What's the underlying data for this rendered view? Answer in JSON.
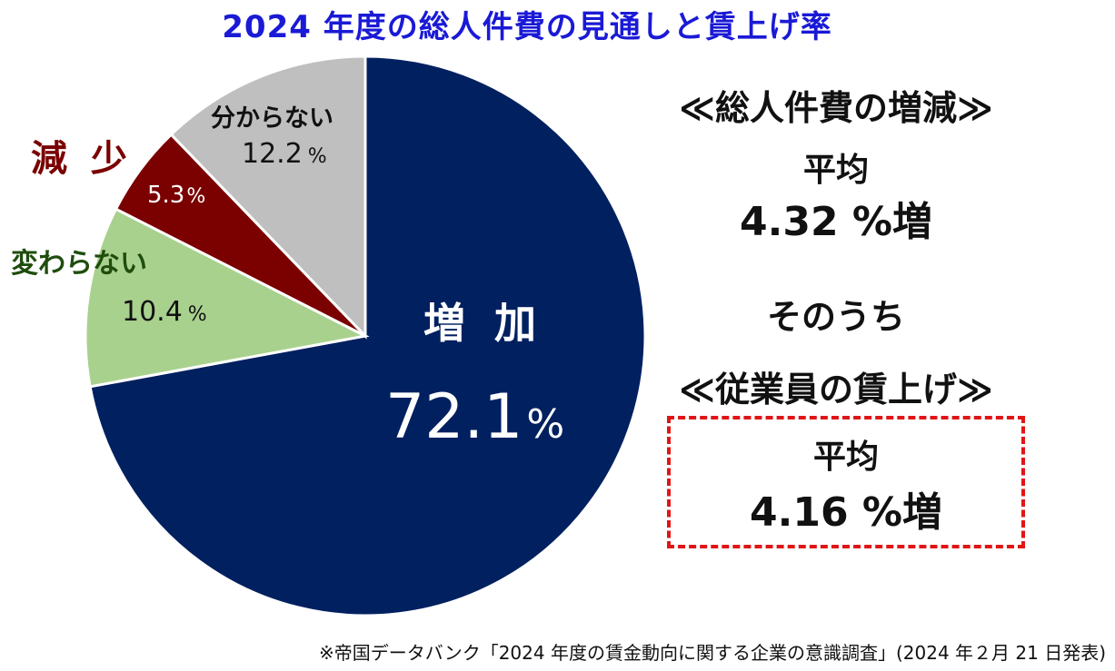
{
  "title": "2024 年度の総人件費の見通しと賃上げ率",
  "chart_data": {
    "type": "pie",
    "title": "2024 年度の総人件費の見通しと賃上げ率",
    "unit": "%",
    "slices": [
      {
        "label": "増 加",
        "value": 72.1,
        "value_text": "72.1",
        "color": "#002060"
      },
      {
        "label": "変わらない",
        "value": 10.4,
        "value_text": "10.4",
        "color": "#a9d18e"
      },
      {
        "label": "減 少",
        "value": 5.3,
        "value_text": "5.3",
        "color": "#7b0000"
      },
      {
        "label": "分からない",
        "value": 12.2,
        "value_text": "12.2",
        "color": "#bfbfbf"
      }
    ],
    "start_angle_deg": 0,
    "direction": "clockwise"
  },
  "side": {
    "heading1": "≪総人件費の増減≫",
    "avg1_label": "平均",
    "avg1_value": "4.32 %増",
    "sonouchi": "そのうち",
    "heading2": "≪従業員の賃上げ≫",
    "avg2_label": "平均",
    "avg2_value": "4.16 %増",
    "box_color": "#e01515"
  },
  "source": "※帝国データバンク「2024 年度の賃金動向に関する企業の意識調査」(2024 年２月 21 日発表)"
}
